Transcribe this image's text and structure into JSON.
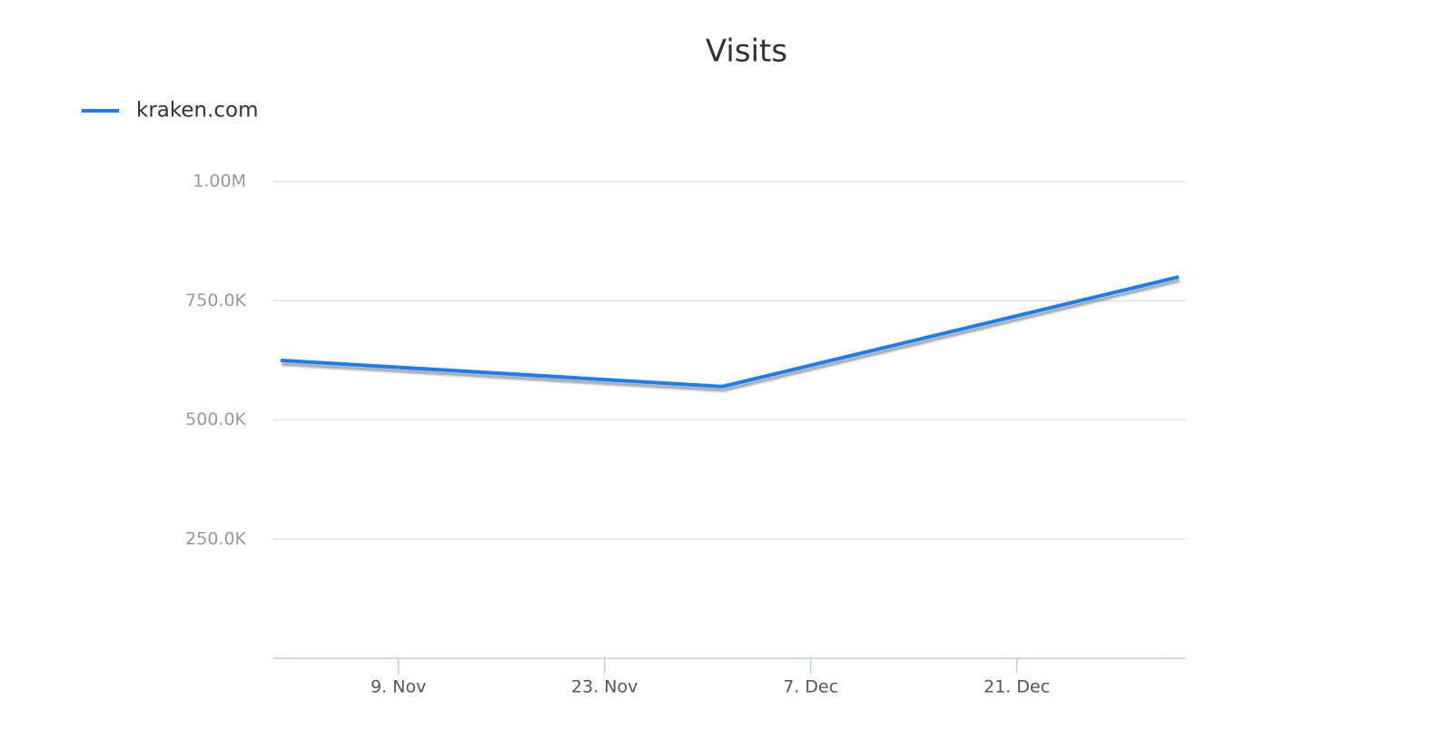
{
  "chart_data": {
    "type": "line",
    "title": "Visits",
    "x": [
      "1. Nov",
      "1. Dec",
      "1. Jan"
    ],
    "series": [
      {
        "name": "kraken.com",
        "color": "#1a7ef2",
        "values": [
          625000,
          570000,
          800000
        ]
      }
    ],
    "xlim": [
      "1. Nov",
      "1. Jan"
    ],
    "xticks": [
      "9. Nov",
      "23. Nov",
      "7. Dec",
      "21. Dec"
    ],
    "ylim": [
      0,
      1000000
    ],
    "yticks": [
      {
        "value": 250000,
        "label": "250.0K"
      },
      {
        "value": 500000,
        "label": "500.0K"
      },
      {
        "value": 750000,
        "label": "750.0K"
      },
      {
        "value": 1000000,
        "label": "1.00M"
      }
    ],
    "grid": true,
    "legend": "top-left"
  }
}
